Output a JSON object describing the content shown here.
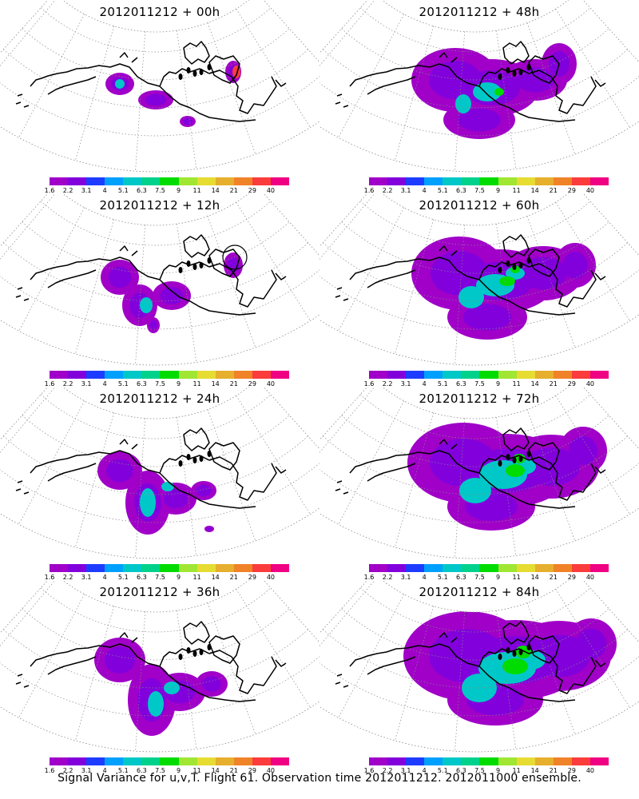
{
  "caption": "Signal Variance for u,v,T. Flight 61. Observation time 2012011212. 2012011000 ensemble.",
  "colorbar": {
    "colors": [
      "#a000c8",
      "#8200dc",
      "#1e3cff",
      "#00a0ff",
      "#00c8c8",
      "#00d28c",
      "#00dc00",
      "#a0e632",
      "#e6dc32",
      "#e6af2d",
      "#f08228",
      "#fa3c3c",
      "#f00082"
    ],
    "labels": [
      "1.6",
      "2.2",
      "3.1",
      "4",
      "5.1",
      "6.3",
      "7.5",
      "9",
      "11",
      "14",
      "21",
      "29",
      "40"
    ]
  },
  "panels": [
    {
      "id": "p00",
      "title": "2012011212 + 00h",
      "lead_hours": 0,
      "spread_level": 0
    },
    {
      "id": "p48",
      "title": "2012011212 + 48h",
      "lead_hours": 48,
      "spread_level": 4
    },
    {
      "id": "p12",
      "title": "2012011212 + 12h",
      "lead_hours": 12,
      "spread_level": 1
    },
    {
      "id": "p60",
      "title": "2012011212 + 60h",
      "lead_hours": 60,
      "spread_level": 5
    },
    {
      "id": "p24",
      "title": "2012011212 + 24h",
      "lead_hours": 24,
      "spread_level": 2
    },
    {
      "id": "p72",
      "title": "2012011212 + 72h",
      "lead_hours": 72,
      "spread_level": 6
    },
    {
      "id": "p36",
      "title": "2012011212 + 36h",
      "lead_hours": 36,
      "spread_level": 3
    },
    {
      "id": "p84",
      "title": "2012011212 + 84h",
      "lead_hours": 84,
      "spread_level": 7
    }
  ]
}
